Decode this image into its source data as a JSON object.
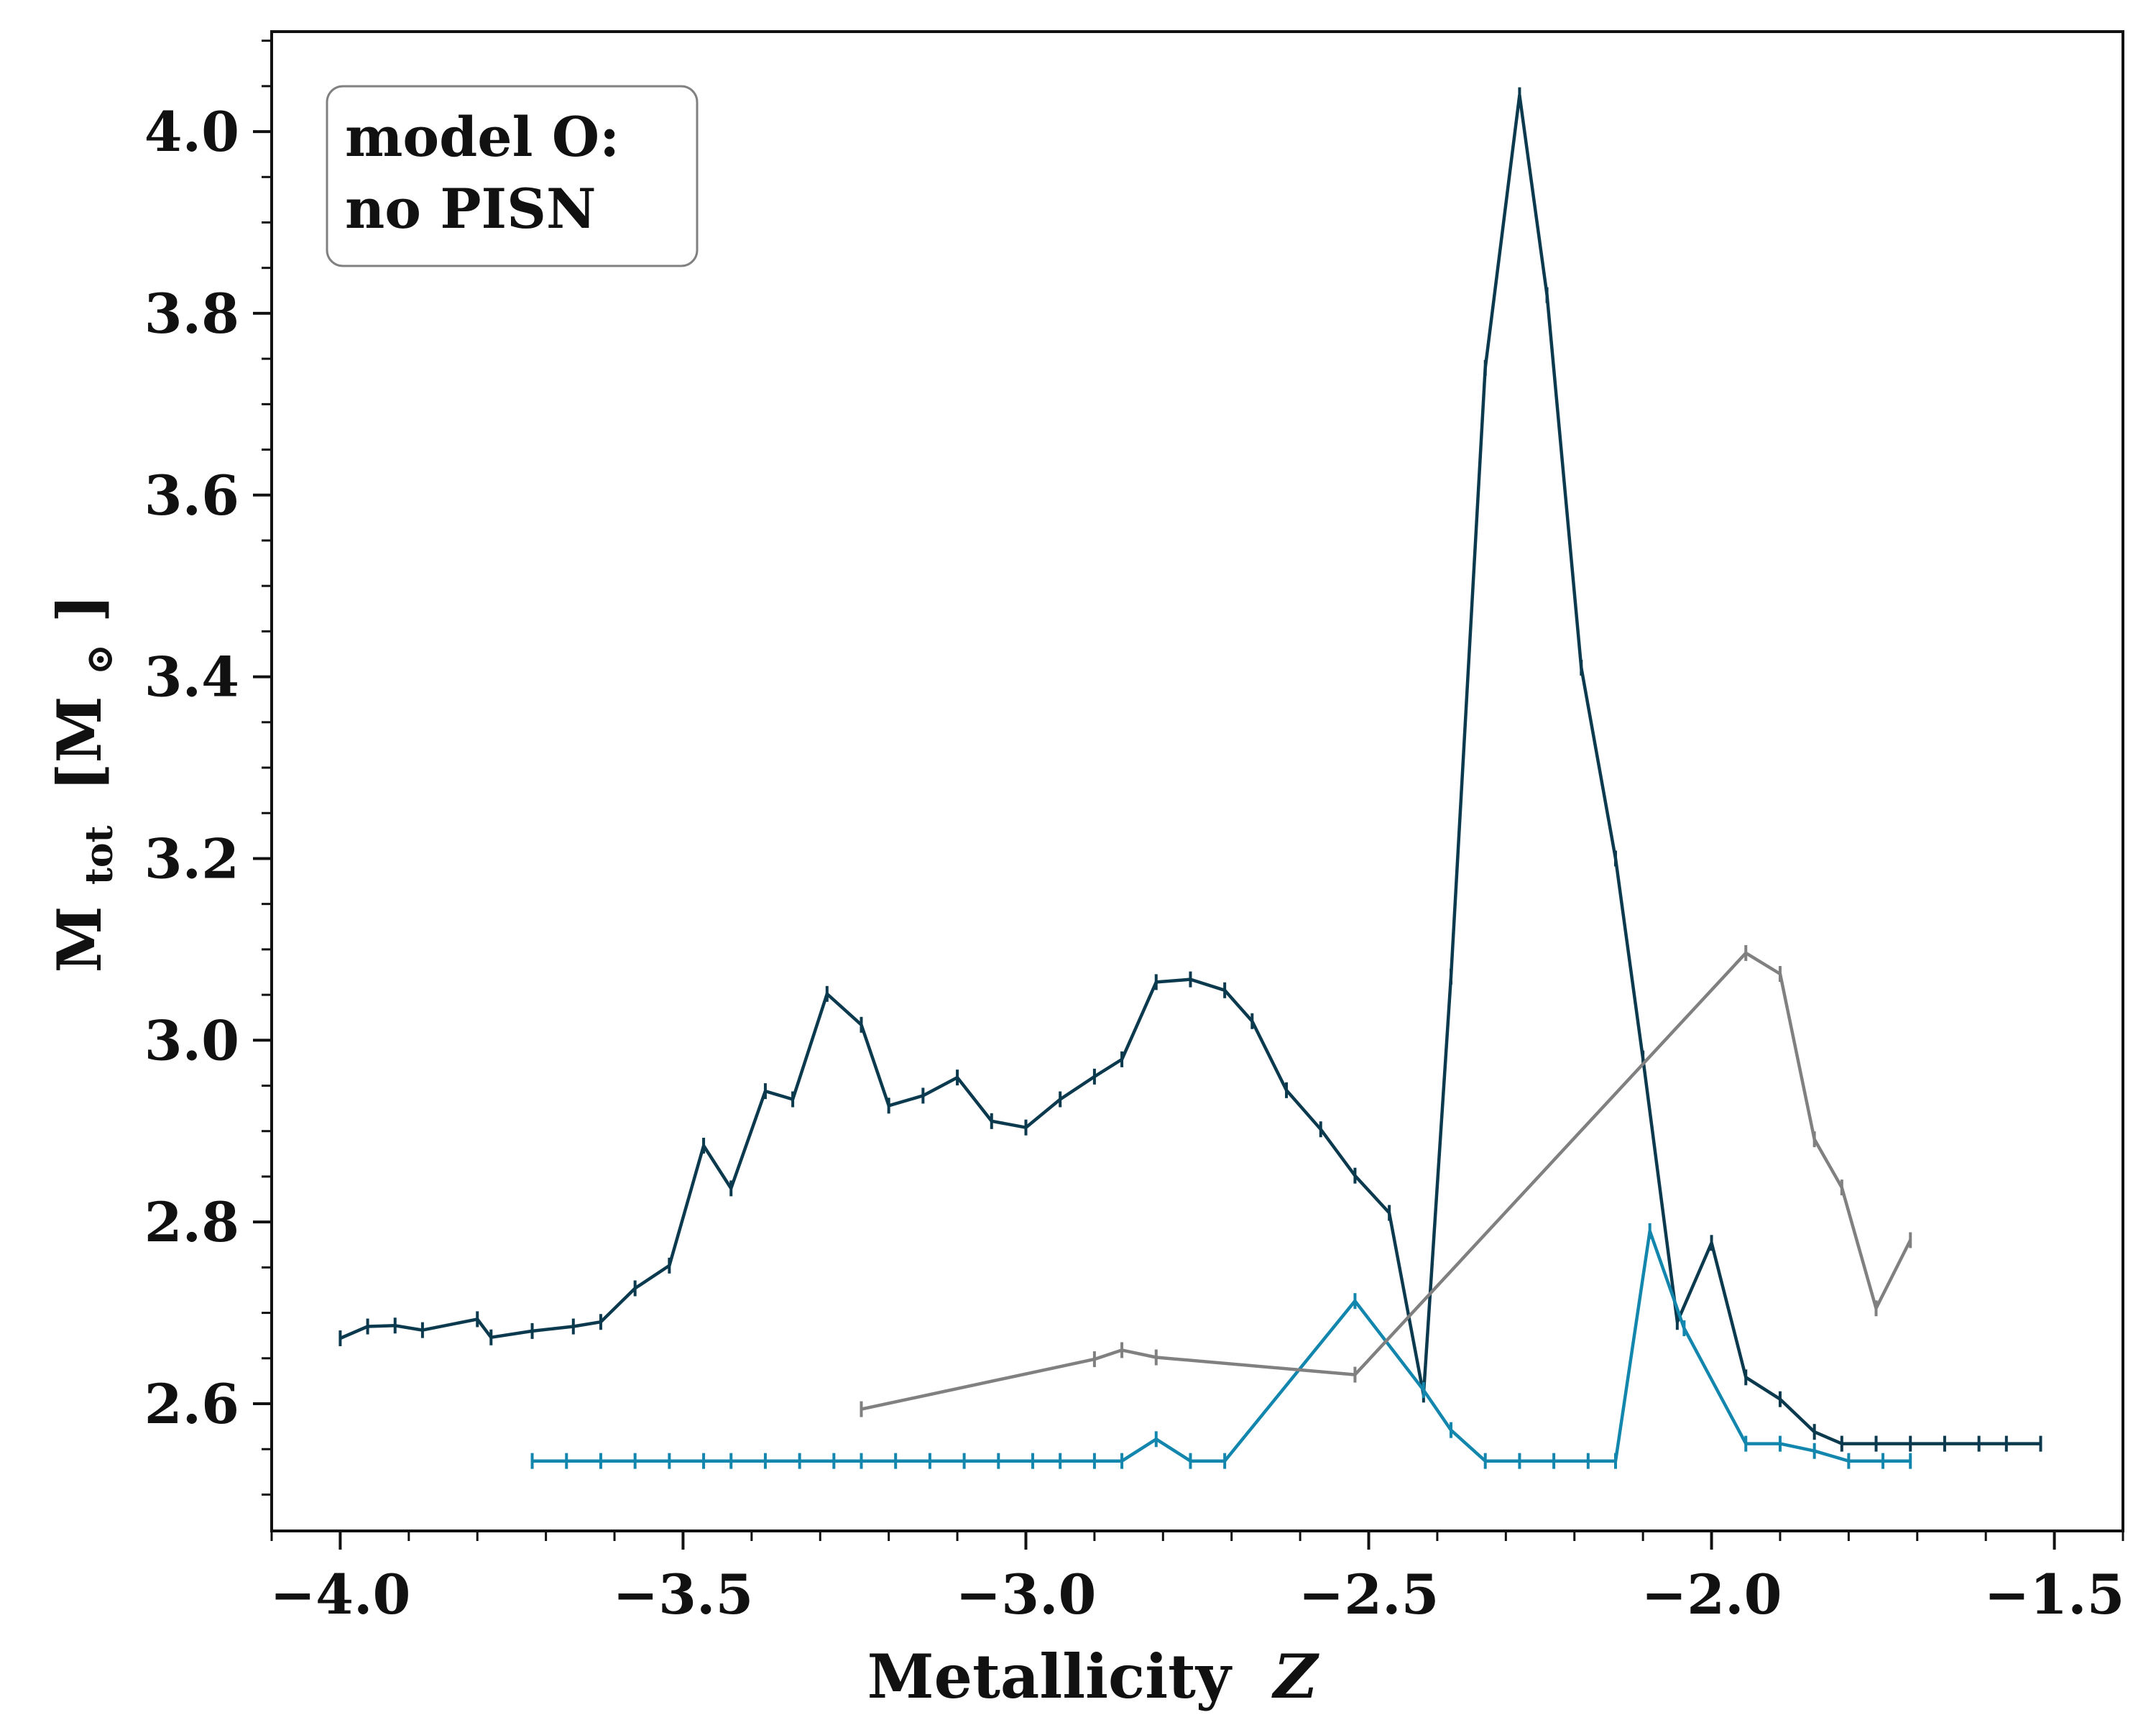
{
  "chart_data": {
    "type": "line",
    "xlabel": "Metallicity",
    "xlabel_var": "Z",
    "ylabel_main": "M",
    "ylabel_sub": "tot",
    "ylabel_unit": "[M",
    "ylabel_unit_sym": "⊙",
    "ylabel_unit_close": "]",
    "xlim": [
      -4.1,
      -1.4
    ],
    "ylim": [
      2.46,
      4.11
    ],
    "xticks": [
      -4.0,
      -3.5,
      -3.0,
      -2.5,
      -2.0,
      -1.5
    ],
    "xtick_labels": [
      "−4.0",
      "−3.5",
      "−3.0",
      "−2.5",
      "−2.0",
      "−1.5"
    ],
    "yticks": [
      2.6,
      2.8,
      3.0,
      3.2,
      3.4,
      3.6,
      3.8,
      4.0
    ],
    "ytick_labels": [
      "2.6",
      "2.8",
      "3.0",
      "3.2",
      "3.4",
      "3.6",
      "3.8",
      "4.0"
    ],
    "annotation": [
      "model O:",
      "no PISN"
    ],
    "annotation_position": "top-left",
    "series": [
      {
        "color": "#0b3a4f",
        "x": [
          -4.0,
          -3.96,
          -3.92,
          -3.88,
          -3.8,
          -3.78,
          -3.72,
          -3.66,
          -3.62,
          -3.57,
          -3.52,
          -3.47,
          -3.43,
          -3.38,
          -3.34,
          -3.29,
          -3.24,
          -3.2,
          -3.15,
          -3.1,
          -3.05,
          -3.0,
          -2.95,
          -2.9,
          -2.86,
          -2.81,
          -2.76,
          -2.71,
          -2.67,
          -2.62,
          -2.57,
          -2.52,
          -2.47,
          -2.42,
          -2.38,
          -2.33,
          -2.28,
          -2.24,
          -2.19,
          -2.14,
          -2.1,
          -2.05,
          -2.0,
          -1.95,
          -1.9,
          -1.85,
          -1.81,
          -1.76,
          -1.71,
          -1.66,
          -1.61,
          -1.57,
          -1.52
        ],
        "y": [
          2.672,
          2.685,
          2.686,
          2.681,
          2.693,
          2.673,
          2.68,
          2.685,
          2.69,
          2.727,
          2.752,
          2.884,
          2.837,
          2.944,
          2.935,
          3.051,
          3.017,
          2.928,
          2.939,
          2.959,
          2.911,
          2.904,
          2.935,
          2.96,
          2.979,
          3.064,
          3.067,
          3.055,
          3.021,
          2.945,
          2.902,
          2.851,
          2.81,
          2.61,
          3.07,
          3.74,
          4.04,
          3.82,
          3.41,
          3.2,
          2.98,
          2.69,
          2.777,
          2.629,
          2.605,
          2.569,
          2.556,
          2.556,
          2.556,
          2.556,
          2.556,
          2.556,
          2.556
        ]
      },
      {
        "color": "#1286ad",
        "x": [
          -3.72,
          -3.67,
          -3.62,
          -3.57,
          -3.52,
          -3.47,
          -3.43,
          -3.38,
          -3.33,
          -3.28,
          -3.24,
          -3.19,
          -3.14,
          -3.09,
          -3.04,
          -2.99,
          -2.95,
          -2.9,
          -2.86,
          -2.81,
          -2.76,
          -2.71,
          -2.52,
          -2.42,
          -2.38,
          -2.33,
          -2.28,
          -2.23,
          -2.18,
          -2.14,
          -2.09,
          -2.04,
          -1.95,
          -1.9,
          -1.85,
          -1.8,
          -1.75,
          -1.71
        ],
        "y": [
          2.537,
          2.537,
          2.537,
          2.537,
          2.537,
          2.537,
          2.537,
          2.537,
          2.537,
          2.537,
          2.537,
          2.537,
          2.537,
          2.537,
          2.537,
          2.537,
          2.537,
          2.537,
          2.537,
          2.561,
          2.537,
          2.537,
          2.713,
          2.615,
          2.571,
          2.537,
          2.537,
          2.537,
          2.537,
          2.537,
          2.79,
          2.683,
          2.556,
          2.556,
          2.548,
          2.537,
          2.537,
          2.537
        ]
      },
      {
        "color": "#808080",
        "x": [
          -3.24,
          -2.9,
          -2.86,
          -2.81,
          -2.52,
          -1.95,
          -1.9,
          -1.85,
          -1.81,
          -1.76,
          -1.71
        ],
        "y": [
          2.594,
          2.649,
          2.659,
          2.651,
          2.632,
          3.096,
          3.073,
          2.891,
          2.838,
          2.705,
          2.78
        ]
      }
    ]
  }
}
